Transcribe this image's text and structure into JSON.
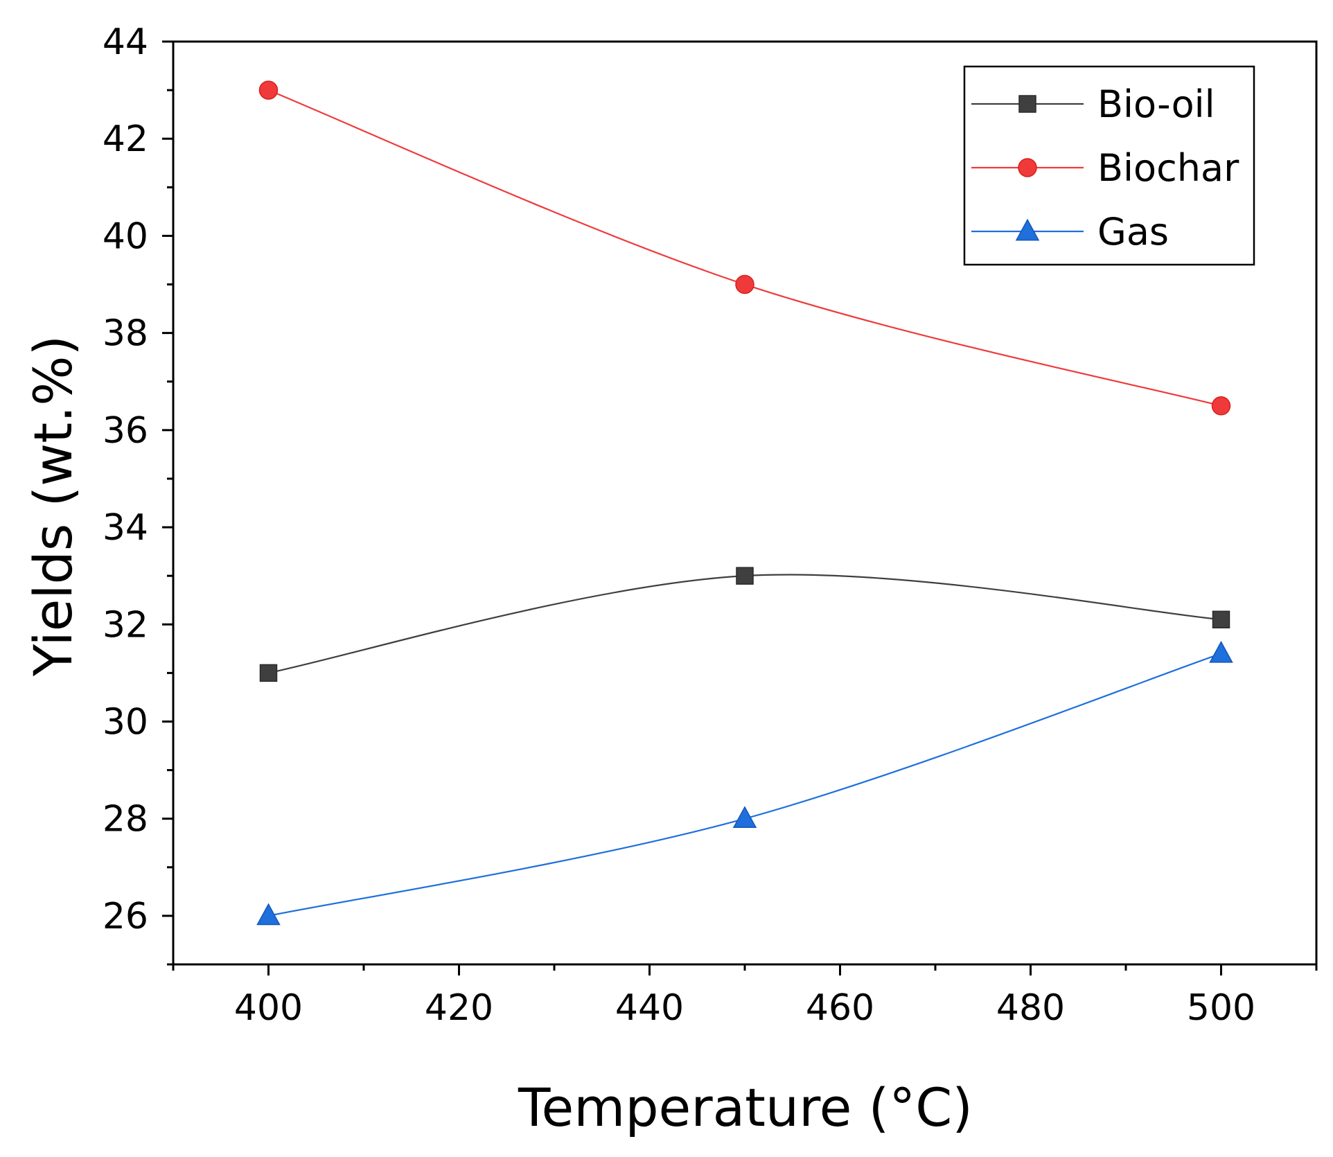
{
  "chart_data": {
    "type": "line",
    "title": "",
    "xlabel": "Temperature (°C)",
    "ylabel": "Yields (wt.%)",
    "xlim": [
      390,
      510
    ],
    "ylim": [
      25,
      44
    ],
    "x_ticks": [
      400,
      420,
      440,
      460,
      480,
      500
    ],
    "y_ticks": [
      26,
      28,
      30,
      32,
      34,
      36,
      38,
      40,
      42,
      44
    ],
    "x": [
      400,
      450,
      500
    ],
    "legend_position": "top-right",
    "series": [
      {
        "name": "Bio-oil",
        "values": [
          31.0,
          33.0,
          32.1
        ],
        "color": "#3f3f3f",
        "marker": "square"
      },
      {
        "name": "Biochar",
        "values": [
          43.0,
          39.0,
          36.5
        ],
        "color": "#f03a3a",
        "marker": "circle"
      },
      {
        "name": "Gas",
        "values": [
          26.0,
          28.0,
          31.4
        ],
        "color": "#1f6fdd",
        "marker": "triangle"
      }
    ]
  }
}
